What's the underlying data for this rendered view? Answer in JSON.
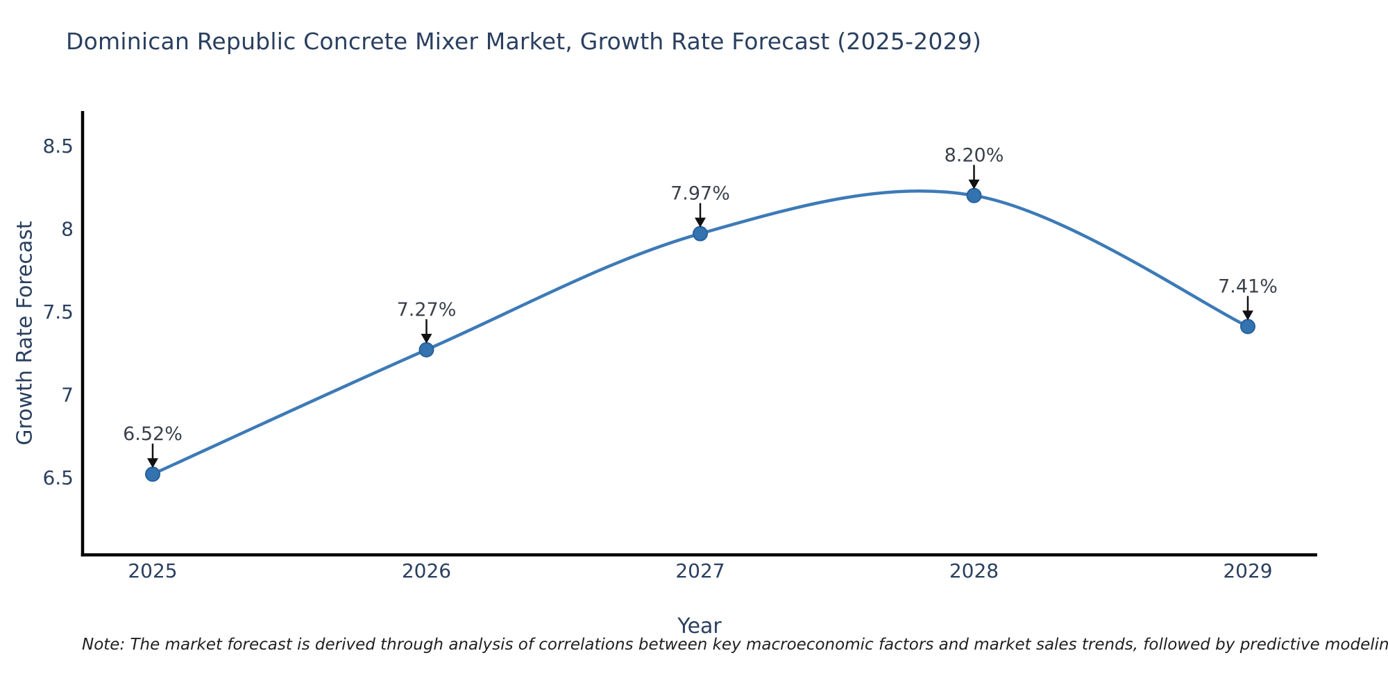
{
  "page": {
    "background": "#ffffff"
  },
  "chart_data": {
    "type": "line",
    "title": "Dominican Republic Concrete Mixer Market, Growth Rate Forecast (2025-2029)",
    "xlabel": "Year",
    "ylabel": "Growth Rate Forecast",
    "categories": [
      "2025",
      "2026",
      "2027",
      "2028",
      "2029"
    ],
    "series": [
      {
        "name": "Growth Rate Forecast",
        "values": [
          6.52,
          7.27,
          7.97,
          8.2,
          7.41
        ],
        "point_labels": [
          "6.52%",
          "7.27%",
          "7.97%",
          "8.20%",
          "7.41%"
        ]
      }
    ],
    "line_shape": "spline",
    "markers": true,
    "grid": false,
    "legend": "none",
    "yticks": [
      6.5,
      7.0,
      7.5,
      8.0,
      8.5
    ],
    "ytick_labels": [
      "6.5",
      "7",
      "7.5",
      "8",
      "8.5"
    ],
    "ylim": [
      6.03,
      8.72
    ],
    "annotation_style": "black-arrow-down-to-point",
    "note": "Note: The market forecast is derived through analysis of correlations between key macroeconomic factors and market sales trends, followed by predictive modeling to project future sales"
  },
  "colors": {
    "line": "#3d7ab7",
    "marker_fill": "#3273b0",
    "marker_stroke": "#28619c",
    "axis_line": "#000000",
    "title_text": "#2a3f5f",
    "axis_title_text": "#2a3f5f",
    "tick_text": "#2a3f5f",
    "annotation_text": "#3a414b",
    "arrow": "#111111",
    "note_text": "#1f1f1f"
  }
}
